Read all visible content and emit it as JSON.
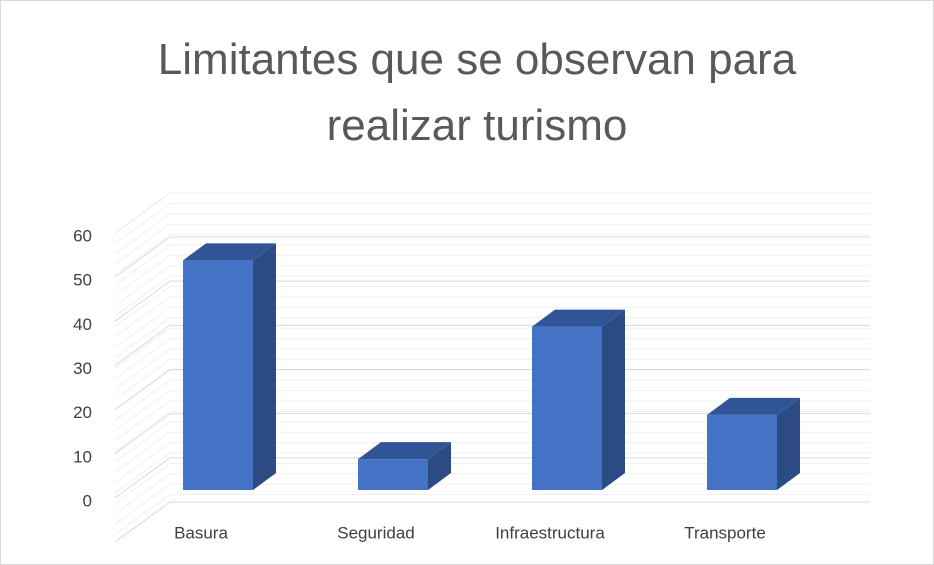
{
  "chart_data": {
    "type": "bar3d",
    "title": "Limitantes que se observan para realizar turismo",
    "categories": [
      "Basura",
      "Seguridad",
      "Infraestructura",
      "Transporte"
    ],
    "values": [
      52,
      7,
      37,
      17
    ],
    "color": "#4472c4",
    "ylim": [
      0,
      60
    ],
    "yticks": [
      0,
      10,
      20,
      30,
      40,
      50,
      60
    ],
    "grid": true
  }
}
